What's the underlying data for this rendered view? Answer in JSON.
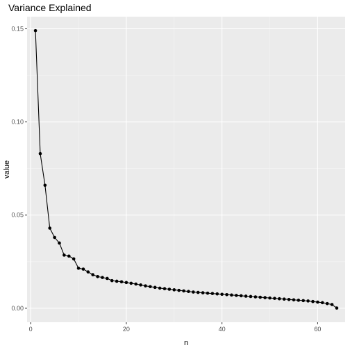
{
  "colors": {
    "panel_background": "#ebebeb",
    "major_grid": "#ffffff",
    "minor_grid": "#f5f5f5",
    "series": "#000000",
    "tick": "#333333"
  },
  "chart_data": {
    "type": "line",
    "title": "Variance Explained",
    "xlabel": "n",
    "ylabel": "value",
    "xlim": [
      -0.75,
      65.75
    ],
    "ylim": [
      -0.0075,
      0.1565
    ],
    "x_ticks": [
      0,
      20,
      40,
      60
    ],
    "x_tick_labels": [
      "0",
      "20",
      "40",
      "60"
    ],
    "y_ticks": [
      0.0,
      0.05,
      0.1,
      0.15
    ],
    "y_tick_labels": [
      "0.00",
      "0.05",
      "0.10",
      "0.15"
    ],
    "grid": true,
    "legend": "none",
    "markers": true,
    "x": [
      1,
      2,
      3,
      4,
      5,
      6,
      7,
      8,
      9,
      10,
      11,
      12,
      13,
      14,
      15,
      16,
      17,
      18,
      19,
      20,
      21,
      22,
      23,
      24,
      25,
      26,
      27,
      28,
      29,
      30,
      31,
      32,
      33,
      34,
      35,
      36,
      37,
      38,
      39,
      40,
      41,
      42,
      43,
      44,
      45,
      46,
      47,
      48,
      49,
      50,
      51,
      52,
      53,
      54,
      55,
      56,
      57,
      58,
      59,
      60,
      61,
      62,
      63,
      64
    ],
    "values": [
      0.149,
      0.083,
      0.066,
      0.043,
      0.038,
      0.035,
      0.0285,
      0.028,
      0.0265,
      0.0215,
      0.021,
      0.0195,
      0.018,
      0.017,
      0.0165,
      0.016,
      0.0148,
      0.0145,
      0.0142,
      0.0138,
      0.0134,
      0.013,
      0.0125,
      0.012,
      0.0116,
      0.0112,
      0.0108,
      0.0105,
      0.0102,
      0.0099,
      0.0096,
      0.0093,
      0.009,
      0.0087,
      0.0085,
      0.0083,
      0.0081,
      0.0079,
      0.0077,
      0.0075,
      0.0073,
      0.0071,
      0.0069,
      0.0067,
      0.0065,
      0.0063,
      0.0061,
      0.0059,
      0.0057,
      0.0055,
      0.0053,
      0.0051,
      0.0049,
      0.0047,
      0.0045,
      0.0043,
      0.0041,
      0.0039,
      0.0036,
      0.0033,
      0.003,
      0.0025,
      0.002,
      0.0001
    ]
  }
}
